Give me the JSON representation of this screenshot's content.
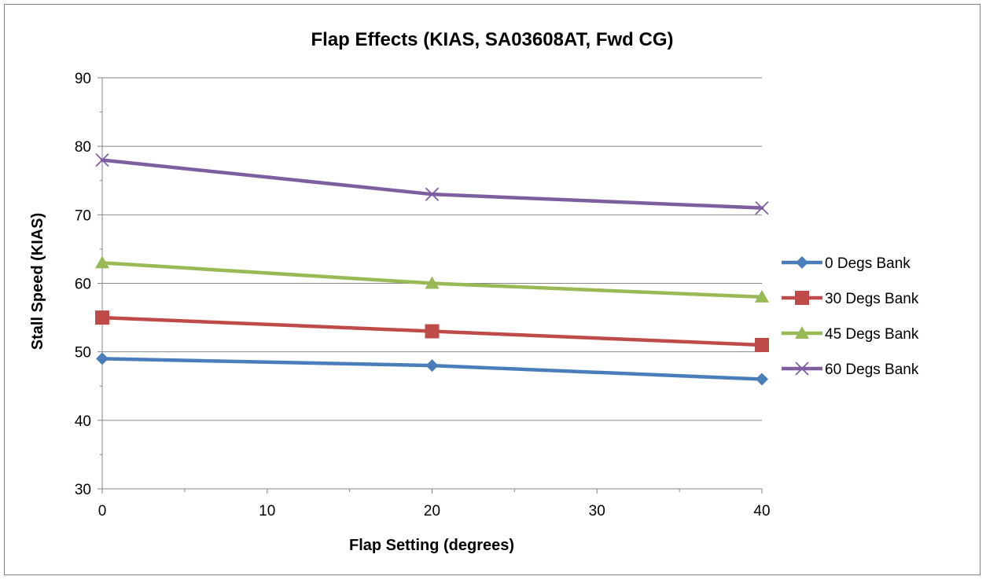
{
  "chart_data": {
    "type": "line",
    "title": "Flap Effects (KIAS, SA03608AT, Fwd CG)",
    "xlabel": "Flap Setting (degrees)",
    "ylabel": "Stall Speed (KIAS)",
    "x": [
      0,
      20,
      40
    ],
    "xlim": [
      0,
      40
    ],
    "ylim": [
      30,
      90
    ],
    "x_ticks": [
      0,
      10,
      20,
      30,
      40
    ],
    "y_ticks": [
      30,
      40,
      50,
      60,
      70,
      80,
      90
    ],
    "grid": "horizontal",
    "legend_position": "right",
    "series": [
      {
        "name": "0 Degs Bank",
        "values": [
          49,
          48,
          46
        ],
        "color": "#4a7ebb",
        "marker": "diamond"
      },
      {
        "name": "30 Degs Bank",
        "values": [
          55,
          53,
          51
        ],
        "color": "#be4b48",
        "marker": "square"
      },
      {
        "name": "45 Degs Bank",
        "values": [
          63,
          60,
          58
        ],
        "color": "#98b954",
        "marker": "triangle"
      },
      {
        "name": "60 Degs Bank",
        "values": [
          78,
          73,
          71
        ],
        "color": "#7d5fa0",
        "marker": "x"
      }
    ]
  }
}
